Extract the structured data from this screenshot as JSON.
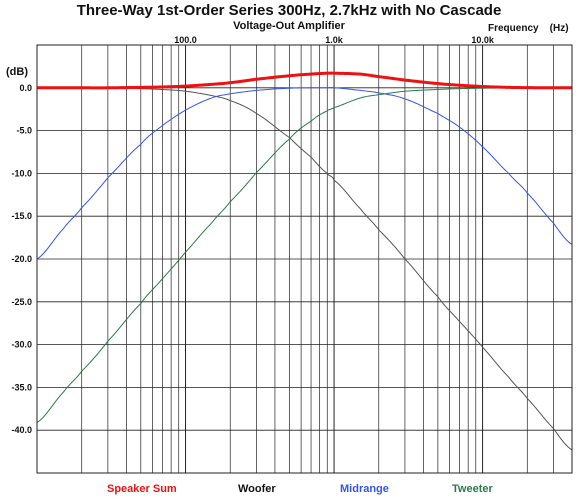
{
  "chart_data": {
    "type": "line",
    "title": "Three-Way 1st-Order Series 300Hz, 2.7kHz with No Cascade",
    "subtitle": "Voltage-Out Amplifier",
    "xlabel": "Frequency    (Hz)",
    "ylabel": "(dB)",
    "x_scale": "log",
    "xlim": [
      10,
      40000
    ],
    "ylim": [
      -45,
      5
    ],
    "x_tick_labels": [
      {
        "value": 100,
        "label": "100.0"
      },
      {
        "value": 1000,
        "label": "1.0k"
      },
      {
        "value": 10000,
        "label": "10.0k"
      }
    ],
    "y_tick_labels": [
      "0.0",
      "-5.0",
      "-10.0",
      "-15.0",
      "-20.0",
      "-25.0",
      "-30.0",
      "-35.0",
      "-40.0"
    ],
    "y_ticks": [
      0,
      -5,
      -10,
      -15,
      -20,
      -25,
      -30,
      -35,
      -40
    ],
    "grid": true,
    "legend_position": "bottom",
    "x": [
      10,
      15,
      20,
      30,
      50,
      70,
      100,
      150,
      200,
      300,
      500,
      700,
      900,
      1000,
      1500,
      2000,
      3000,
      5000,
      7000,
      10000,
      15000,
      20000,
      30000,
      40000
    ],
    "series": [
      {
        "name": "Speaker Sum",
        "color": "#ee1111",
        "values": [
          0.0,
          0.0,
          0.0,
          0.0,
          0.05,
          0.1,
          0.2,
          0.4,
          0.6,
          1.0,
          1.4,
          1.6,
          1.7,
          1.7,
          1.6,
          1.3,
          0.9,
          0.5,
          0.3,
          0.15,
          0.05,
          0.02,
          0.0,
          0.0
        ]
      },
      {
        "name": "Woofer",
        "color": "#555555",
        "values": [
          0.0,
          0.0,
          -0.01,
          -0.03,
          -0.1,
          -0.2,
          -0.4,
          -0.9,
          -1.5,
          -3.0,
          -5.8,
          -8.1,
          -10.0,
          -10.8,
          -14.1,
          -16.6,
          -20.0,
          -24.4,
          -27.3,
          -30.3,
          -33.8,
          -36.3,
          -39.8,
          -42.3
        ]
      },
      {
        "name": "Midrange",
        "color": "#3355ee",
        "values": [
          -20.0,
          -16.5,
          -14.0,
          -10.5,
          -6.6,
          -4.4,
          -2.6,
          -1.2,
          -0.7,
          -0.3,
          -0.05,
          0.0,
          0.0,
          0.0,
          -0.3,
          -0.6,
          -1.3,
          -3.0,
          -4.6,
          -6.9,
          -10.0,
          -12.3,
          -15.8,
          -18.3
        ]
      },
      {
        "name": "Tweeter",
        "color": "#2a7a4a",
        "values": [
          -39.1,
          -35.6,
          -33.1,
          -29.6,
          -25.2,
          -22.3,
          -19.2,
          -15.8,
          -13.3,
          -9.9,
          -6.0,
          -3.9,
          -2.7,
          -2.3,
          -1.2,
          -0.8,
          -0.4,
          -0.2,
          -0.1,
          -0.05,
          -0.02,
          -0.01,
          0.0,
          0.0
        ]
      }
    ]
  }
}
